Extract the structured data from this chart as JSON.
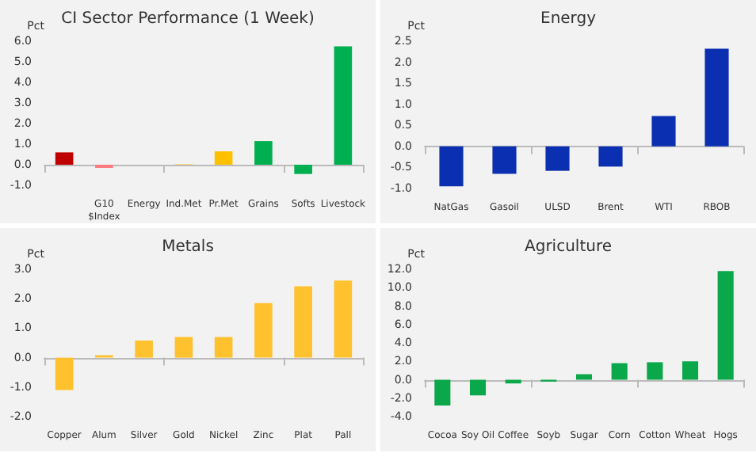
{
  "chart_data": [
    {
      "type": "bar",
      "title": "CI Sector Performance (1 Week)",
      "ylabel": "Pct",
      "categories": [
        null,
        "G10\n$Index",
        "Energy",
        "Ind.Met",
        "Pr.Met",
        "Grains",
        "Softs",
        "Livestock"
      ],
      "values": [
        0.6,
        -0.15,
        0,
        0.02,
        0.65,
        1.15,
        -0.45,
        5.75
      ],
      "colors": [
        "#c00000",
        "#ff7c80",
        "#1f3fbf",
        "#ffc000",
        "#ffc000",
        "#00b050",
        "#00b050",
        "#00b050"
      ],
      "ylim": [
        -1,
        6
      ],
      "yticks": [
        {
          "value": -1,
          "label": "-1.0"
        },
        {
          "value": 0,
          "label": "0.0"
        },
        {
          "value": 1,
          "label": "1.0"
        },
        {
          "value": 2,
          "label": "2.0"
        },
        {
          "value": 3,
          "label": "3.0"
        },
        {
          "value": 4,
          "label": "4.0"
        },
        {
          "value": 5,
          "label": "5.0"
        },
        {
          "value": 6,
          "label": "6.0"
        }
      ]
    },
    {
      "type": "bar",
      "title": "Energy",
      "ylabel": "Pct",
      "categories": [
        "NatGas",
        "Gasoil",
        "ULSD",
        "Brent",
        "WTI",
        "RBOB"
      ],
      "values": [
        -0.95,
        -0.65,
        -0.58,
        -0.48,
        0.72,
        2.32
      ],
      "color": "#0a2fb0",
      "ylim": [
        -1,
        2.5
      ],
      "yticks": [
        {
          "value": -1,
          "label": "-1.0"
        },
        -0.5,
        {
          "value": 0,
          "label": "0.0"
        },
        0.5,
        {
          "value": 1,
          "label": "1.0"
        },
        1.5,
        {
          "value": 2,
          "label": "2.0"
        },
        2.5
      ]
    },
    {
      "type": "bar",
      "title": "Metals",
      "ylabel": "Pct",
      "categories": [
        "Copper",
        "Alum",
        "Silver",
        "Gold",
        "Nickel",
        "Zinc",
        "Plat",
        "Pall"
      ],
      "values": [
        -1.1,
        0.08,
        0.58,
        0.7,
        0.7,
        1.85,
        2.42,
        2.62
      ],
      "color": "#ffc12e",
      "ylim": [
        -2,
        3
      ],
      "yticks": [
        {
          "value": -2,
          "label": "-2.0"
        },
        {
          "value": -1,
          "label": "-1.0"
        },
        {
          "value": 0,
          "label": "0.0"
        },
        {
          "value": 1,
          "label": "1.0"
        },
        {
          "value": 2,
          "label": "2.0"
        },
        {
          "value": 3,
          "label": "3.0"
        }
      ]
    },
    {
      "type": "bar",
      "title": "Agriculture",
      "ylabel": "Pct",
      "categories": [
        "Cocoa",
        "Soy Oil",
        "Coffee",
        "Soyb",
        "Sugar",
        "Corn",
        "Cotton",
        "Wheat",
        "Hogs"
      ],
      "values": [
        -2.8,
        -1.7,
        -0.4,
        -0.2,
        0.6,
        1.8,
        1.9,
        2.0,
        11.8
      ],
      "color": "#0aa84a",
      "ylim": [
        -4,
        12
      ],
      "yticks": [
        {
          "value": -4,
          "label": "-4.0"
        },
        {
          "value": -2,
          "label": "-2.0"
        },
        {
          "value": 0,
          "label": "0.0"
        },
        {
          "value": 2,
          "label": "2.0"
        },
        {
          "value": 4,
          "label": "4.0"
        },
        {
          "value": 6,
          "label": "6.0"
        },
        {
          "value": 8,
          "label": "8.0"
        },
        {
          "value": 10,
          "label": "10.0"
        },
        {
          "value": 12,
          "label": "12.0"
        }
      ]
    }
  ]
}
